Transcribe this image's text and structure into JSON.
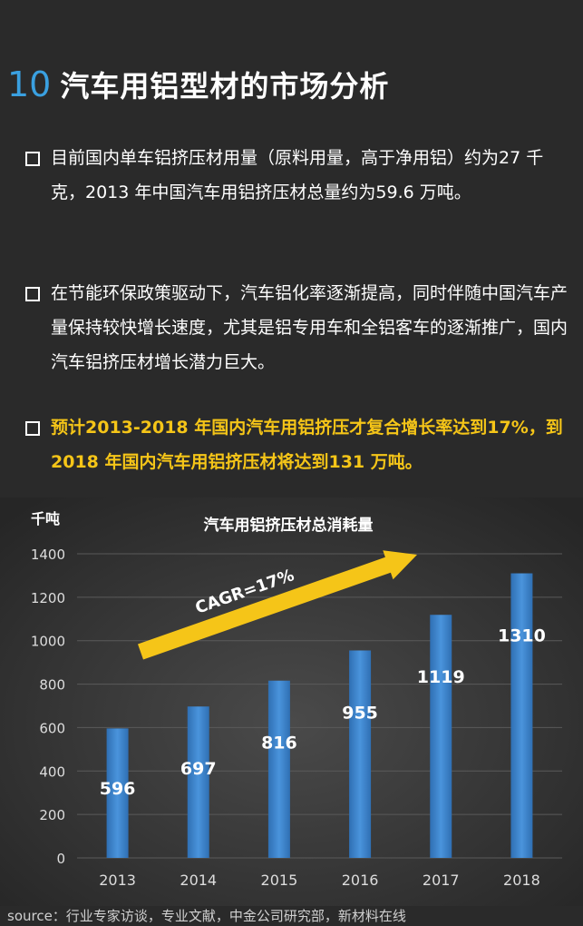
{
  "header": {
    "number": "10",
    "title": "汽车用铝型材的市场分析"
  },
  "bullets": [
    {
      "text": "目前国内单车铝挤压材用量（原料用量，高于净用铝）约为27 千克，2013 年中国汽车用铝挤压材总量约为59.6 万吨。"
    },
    {
      "text": "在节能环保政策驱动下，汽车铝化率逐渐提高，同时伴随中国汽车产量保持较快增长速度，尤其是铝专用车和全铝客车的逐渐推广，国内汽车铝挤压材增长潜力巨大。"
    },
    {
      "text": "预计2013-2018 年国内汽车用铝挤压才复合增长率达到17%，到2018 年国内汽车用铝挤压材将达到131 万吨。"
    }
  ],
  "chart_data": {
    "type": "bar",
    "title": "汽车用铝挤压材总消耗量",
    "ylabel": "千吨",
    "xlabel": "",
    "categories": [
      "2013",
      "2014",
      "2015",
      "2016",
      "2017",
      "2018"
    ],
    "values": [
      596,
      697,
      816,
      955,
      1119,
      1310
    ],
    "data_labels": [
      "596",
      "697",
      "816",
      "955",
      "1119",
      "1310"
    ],
    "yticks": [
      "0",
      "200",
      "400",
      "600",
      "800",
      "1000",
      "1200",
      "1400"
    ],
    "ytick_values": [
      0,
      200,
      400,
      600,
      800,
      1000,
      1200,
      1400
    ],
    "ylim": [
      0,
      1400
    ],
    "grid": true,
    "annotation": "CAGR=17%",
    "colors": {
      "bar": "#3f88d0",
      "arrow": "#f5c518",
      "label": "#ffffff",
      "axis_text": "#dddddd"
    }
  },
  "footer": {
    "source": "source：行业专家访谈，专业文献，中金公司研究部，新材料在线"
  }
}
